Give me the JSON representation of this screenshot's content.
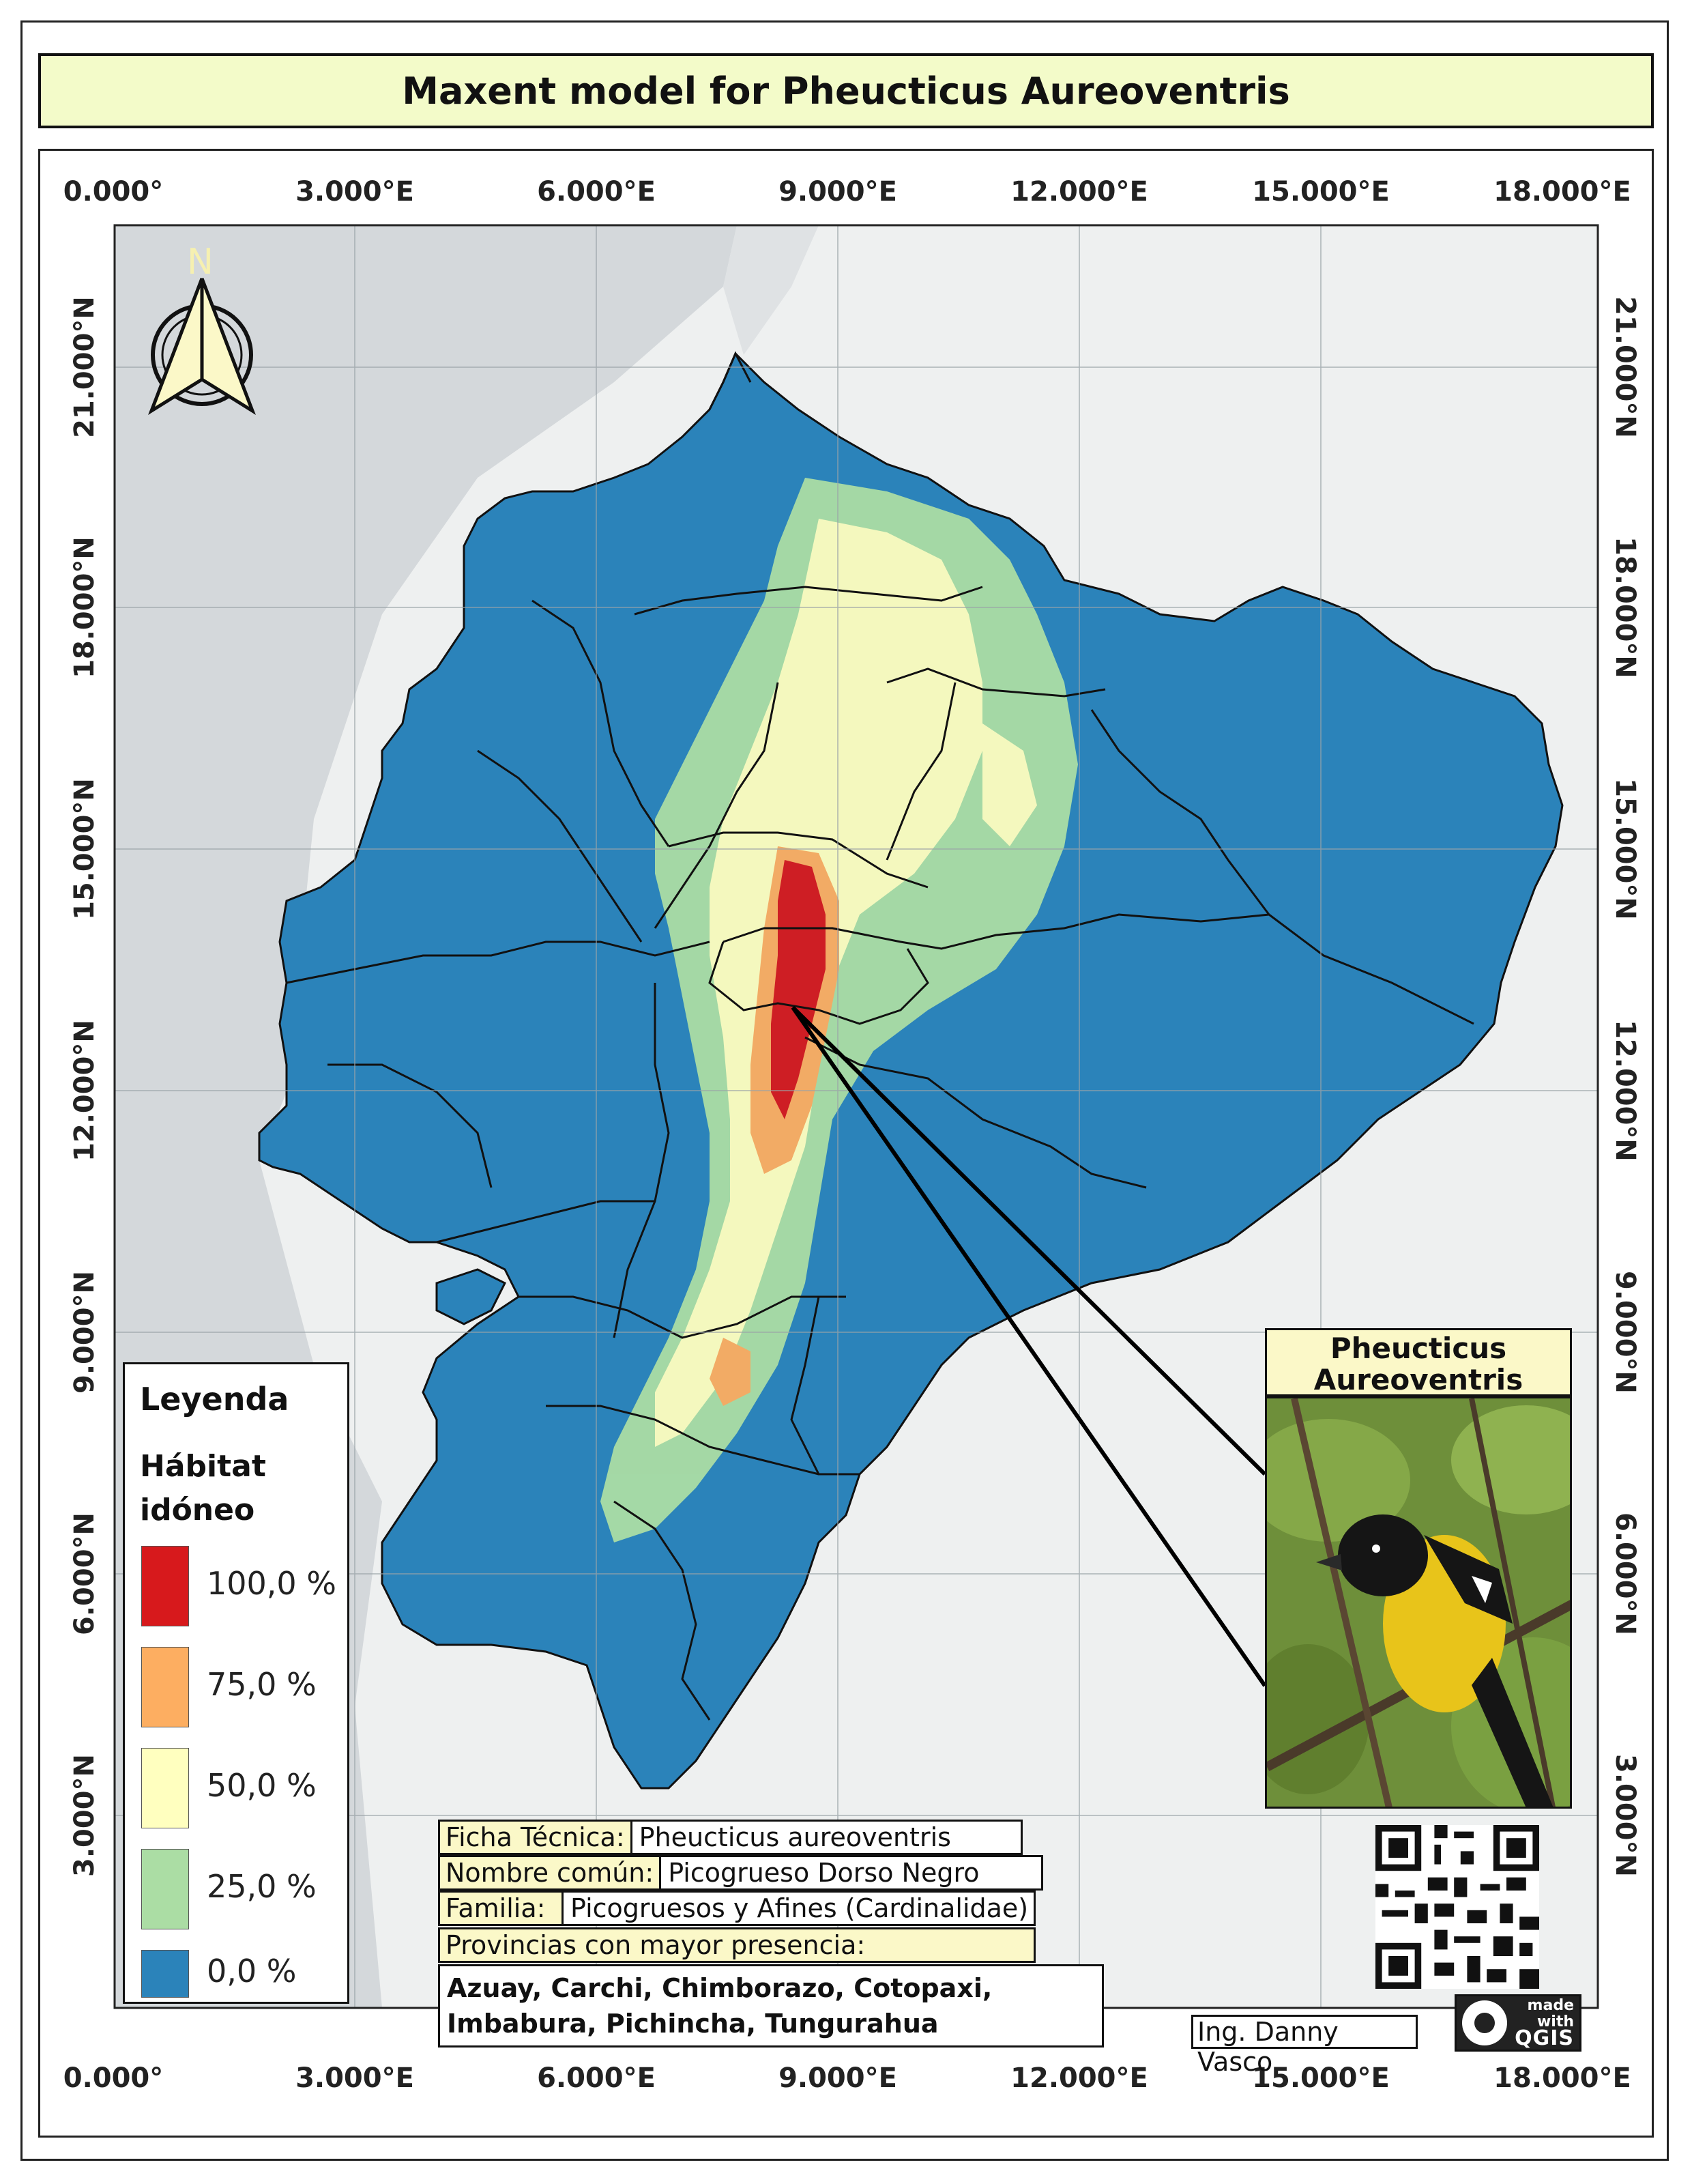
{
  "title": "Maxent model for Pheucticus Aureoventris",
  "graticule": {
    "x_labels": [
      "0.000°",
      "3.000°E",
      "6.000°E",
      "9.000°E",
      "12.000°E",
      "15.000°E",
      "18.000°E"
    ],
    "y_labels": [
      "21.000°N",
      "18.000°N",
      "15.000°N",
      "12.000°N",
      "9.000°N",
      "6.000°N",
      "3.000°N"
    ]
  },
  "north_arrow": {
    "letter": "N",
    "icon": "north-arrow-icon"
  },
  "legend": {
    "title": "Leyenda",
    "subtitle": "Hábitat idóneo",
    "items": [
      {
        "label": "100,0 %",
        "color": "#d7191c"
      },
      {
        "label": "75,0 %",
        "color": "#fdae61"
      },
      {
        "label": "50,0 %",
        "color": "#ffffbf"
      },
      {
        "label": "25,0 %",
        "color": "#abdda4"
      },
      {
        "label": "0,0 %",
        "color": "#2b83ba"
      }
    ]
  },
  "ficha": {
    "ficha_label": "Ficha Técnica:",
    "ficha_value": "Pheucticus aureoventris",
    "nombre_label": "Nombre común:",
    "nombre_value": "Picogrueso Dorso Negro",
    "familia_label": "Familia:",
    "familia_value": "Picogruesos y Afines (Cardinalidae)",
    "provincias_label": "Provincias con mayor presencia:",
    "provincias_value": "Azuay, Carchi, Chimborazo, Cotopaxi, Imbabura, Pichincha, Tungurahua"
  },
  "bird_panel": {
    "title": "Pheucticus Aureoventris"
  },
  "author": "Ing. Danny Vasco",
  "qgis_badge": {
    "made": "made",
    "with": "with",
    "brand": "QGIS"
  },
  "colors": {
    "ocean": "#d4d8db",
    "land": "#eef0f0",
    "frame": "#222222",
    "title_bg": "#f3fbc9"
  }
}
